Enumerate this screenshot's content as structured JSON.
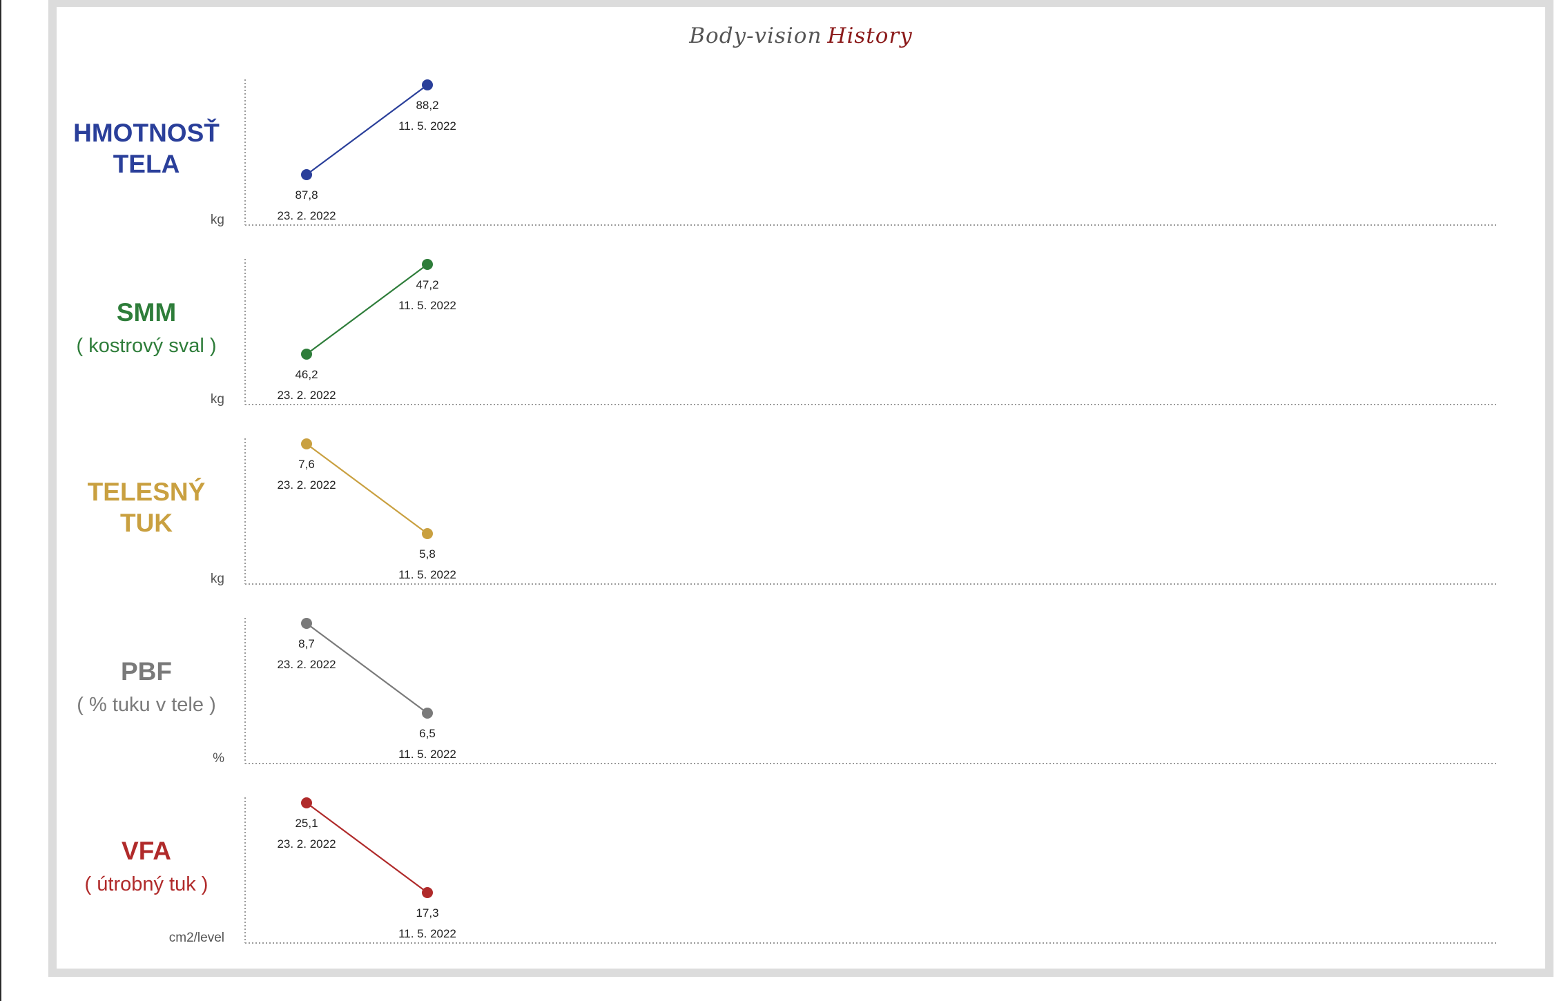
{
  "title": {
    "part1": "Body-vision",
    "part2": "History"
  },
  "chart_data": [
    {
      "type": "line",
      "label_lines": [
        "HMOTNOSŤ",
        "TELA"
      ],
      "unit": "kg",
      "color": "#2a3f9a",
      "points": [
        {
          "value": 87.8,
          "value_label": "87,8",
          "date": "23. 2. 2022"
        },
        {
          "value": 88.2,
          "value_label": "88,2",
          "date": "11. 5. 2022"
        }
      ]
    },
    {
      "type": "line",
      "label_lines": [
        "SMM",
        "( kostrový sval )"
      ],
      "unit": "kg",
      "color": "#2e7d3a",
      "points": [
        {
          "value": 46.2,
          "value_label": "46,2",
          "date": "23. 2. 2022"
        },
        {
          "value": 47.2,
          "value_label": "47,2",
          "date": "11. 5. 2022"
        }
      ]
    },
    {
      "type": "line",
      "label_lines": [
        "TELESNÝ",
        "TUK"
      ],
      "unit": "kg",
      "color": "#c9a040",
      "points": [
        {
          "value": 7.6,
          "value_label": "7,6",
          "date": "23. 2. 2022"
        },
        {
          "value": 5.8,
          "value_label": "5,8",
          "date": "11. 5. 2022"
        }
      ]
    },
    {
      "type": "line",
      "label_lines": [
        "PBF",
        "( % tuku v tele )"
      ],
      "unit": "%",
      "color": "#7a7a7a",
      "points": [
        {
          "value": 8.7,
          "value_label": "8,7",
          "date": "23. 2. 2022"
        },
        {
          "value": 6.5,
          "value_label": "6,5",
          "date": "11. 5. 2022"
        }
      ]
    },
    {
      "type": "line",
      "label_lines": [
        "VFA",
        "( útrobný tuk )"
      ],
      "unit": "cm2/level",
      "color": "#b02a2a",
      "points": [
        {
          "value": 25.1,
          "value_label": "25,1",
          "date": "23. 2. 2022"
        },
        {
          "value": 17.3,
          "value_label": "17,3",
          "date": "11. 5. 2022"
        }
      ]
    }
  ]
}
